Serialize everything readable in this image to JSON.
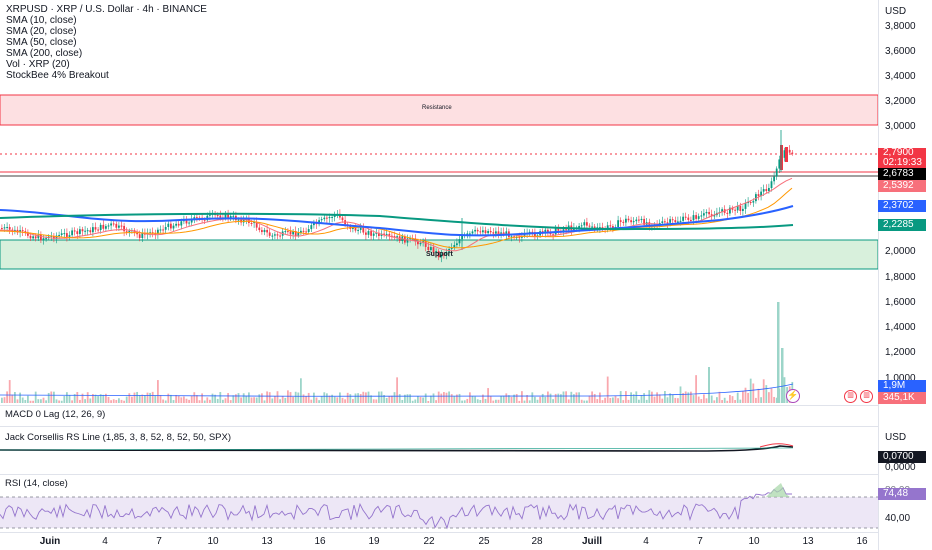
{
  "header": {
    "symbol_line": "XRPUSD · XRP / U.S. Dollar · 4h · BINANCE",
    "indicators": [
      "SMA (10, close)",
      "SMA (20, close)",
      "SMA (50, close)",
      "SMA (200, close)",
      "Vol · XRP (20)",
      "StockBee 4% Breakout"
    ]
  },
  "price_axis": {
    "currency": "USD",
    "ticks": [
      "3,8000",
      "3,6000",
      "3,4000",
      "3,2000",
      "3,0000",
      "2,0000",
      "1,8000",
      "1,6000",
      "1,4000",
      "1,2000",
      "1,0000"
    ]
  },
  "price_tags": [
    {
      "label": "2,7900",
      "sub": "02:19:33",
      "color": "#f23645"
    },
    {
      "label": "2,6783",
      "color": "#000000"
    },
    {
      "label": "2,5392",
      "color": "#f7707b"
    },
    {
      "label": "2,3702",
      "color": "#2962ff"
    },
    {
      "label": "2,2285",
      "color": "#089981"
    },
    {
      "label": "1,9M",
      "color": "#2962ff"
    },
    {
      "label": "345,1K",
      "color": "#f7707b"
    }
  ],
  "zones": {
    "resistance": "Resistance",
    "support": "Support"
  },
  "panes": {
    "macd_title": "MACD 0 Lag (12, 26, 9)",
    "rs_title": "Jack Corsellis RS Line (1,85, 3, 8, 52, 8, 52, 50, SPX)",
    "rs_axis_label": "USD",
    "rs_tags": [
      {
        "label": "0,0700",
        "color": "#131722"
      }
    ],
    "rs_tick": "0,0000",
    "rsi_title": "RSI (14, close)",
    "rsi_tag": {
      "label": "74,48",
      "color": "#9575cd"
    },
    "rsi_ticks": [
      "80,00",
      "40,00"
    ]
  },
  "time_axis": {
    "labels": [
      "Juin",
      "4",
      "7",
      "10",
      "13",
      "16",
      "19",
      "22",
      "25",
      "28",
      "Juill",
      "4",
      "7",
      "10",
      "13",
      "16"
    ]
  },
  "colors": {
    "up": "#089981",
    "down": "#f23645",
    "sma10": "#f7707b",
    "sma20": "#ff9800",
    "sma50": "#2962ff",
    "sma200": "#089981"
  }
}
